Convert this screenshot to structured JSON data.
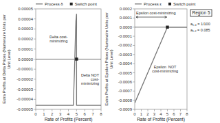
{
  "chart_data": [
    {
      "type": "line",
      "xlabel": "Rate of Profits (Percent)",
      "ylabel": "Extra Profits at Delta Prices (Numeraire Units per Unit Level)",
      "xlim": [
        0,
        8
      ],
      "ylim": [
        -5e-05,
        5e-05
      ],
      "xticks": [
        0,
        1,
        2,
        3,
        4,
        5,
        6,
        7,
        8
      ],
      "yticks": [
        -5e-05,
        -4e-05,
        -3e-05,
        -2e-05,
        -1e-05,
        {
          "value": 0,
          "label": "0.00000"
        },
        1e-05,
        2e-05,
        3e-05,
        4e-05,
        5e-05
      ],
      "series": [
        {
          "name": "Process δ",
          "color": "#777777",
          "x": [
            0,
            4.6,
            4.75,
            4.85,
            4.92,
            5.0,
            null,
            5.0,
            5.0,
            5.05,
            6.0,
            7.0,
            8.0
          ],
          "values": [
            -4.6e-05,
            -4.6e-05,
            -1e-05,
            2e-05,
            3.8e-05,
            4.5e-05,
            null,
            4.5e-05,
            -4.6e-05,
            -4.6e-05,
            -4.6e-05,
            -4.6e-05,
            -4.6e-05
          ]
        },
        {
          "name": "Switch point",
          "type": "scatter",
          "marker": "square",
          "color": "#222222",
          "x": [
            5.0
          ],
          "values": [
            0.0
          ]
        }
      ],
      "annotations": [
        "Delta cost-\nminimizing",
        "Delta NOT\ncost-\nminimizing"
      ],
      "legend": "top",
      "grid": false
    },
    {
      "type": "line",
      "xlabel": "Rate of Profits (Percent)",
      "ylabel": "Extra Profits at Epsilon Prices (Numeraire Units per Unit Level)",
      "xlim": [
        0,
        8
      ],
      "ylim": [
        -0.0009,
        0.0002
      ],
      "xticks": [
        0,
        1,
        2,
        3,
        4,
        5,
        6,
        7,
        8
      ],
      "yticks": [
        -0.0009,
        -0.0008,
        -0.0007,
        -0.0006,
        -0.0005,
        -0.0004,
        -0.0003,
        -0.0002,
        -0.0001,
        {
          "value": 0,
          "label": "0.0000"
        },
        0.0001,
        0.0002
      ],
      "series": [
        {
          "name": "Process ε",
          "color": "#777777",
          "x": [
            0,
            5.0,
            null,
            5.0,
            8.0
          ],
          "values": [
            -0.00083,
            0.0,
            null,
            0.0,
            0.0
          ]
        },
        {
          "name": "Switch point",
          "type": "scatter",
          "marker": "square",
          "color": "#222222",
          "x": [
            5.0
          ],
          "values": [
            0.0
          ]
        }
      ],
      "annotations": [
        "Epsilon cost-minimizing",
        "Epsilon  NOT\ncost-minimizing"
      ],
      "box_label": "Region 5",
      "notes": [
        "a₁,₄ = 1/100",
        "a₁,₂ = 0.085"
      ],
      "legend": "top",
      "grid": false
    }
  ]
}
